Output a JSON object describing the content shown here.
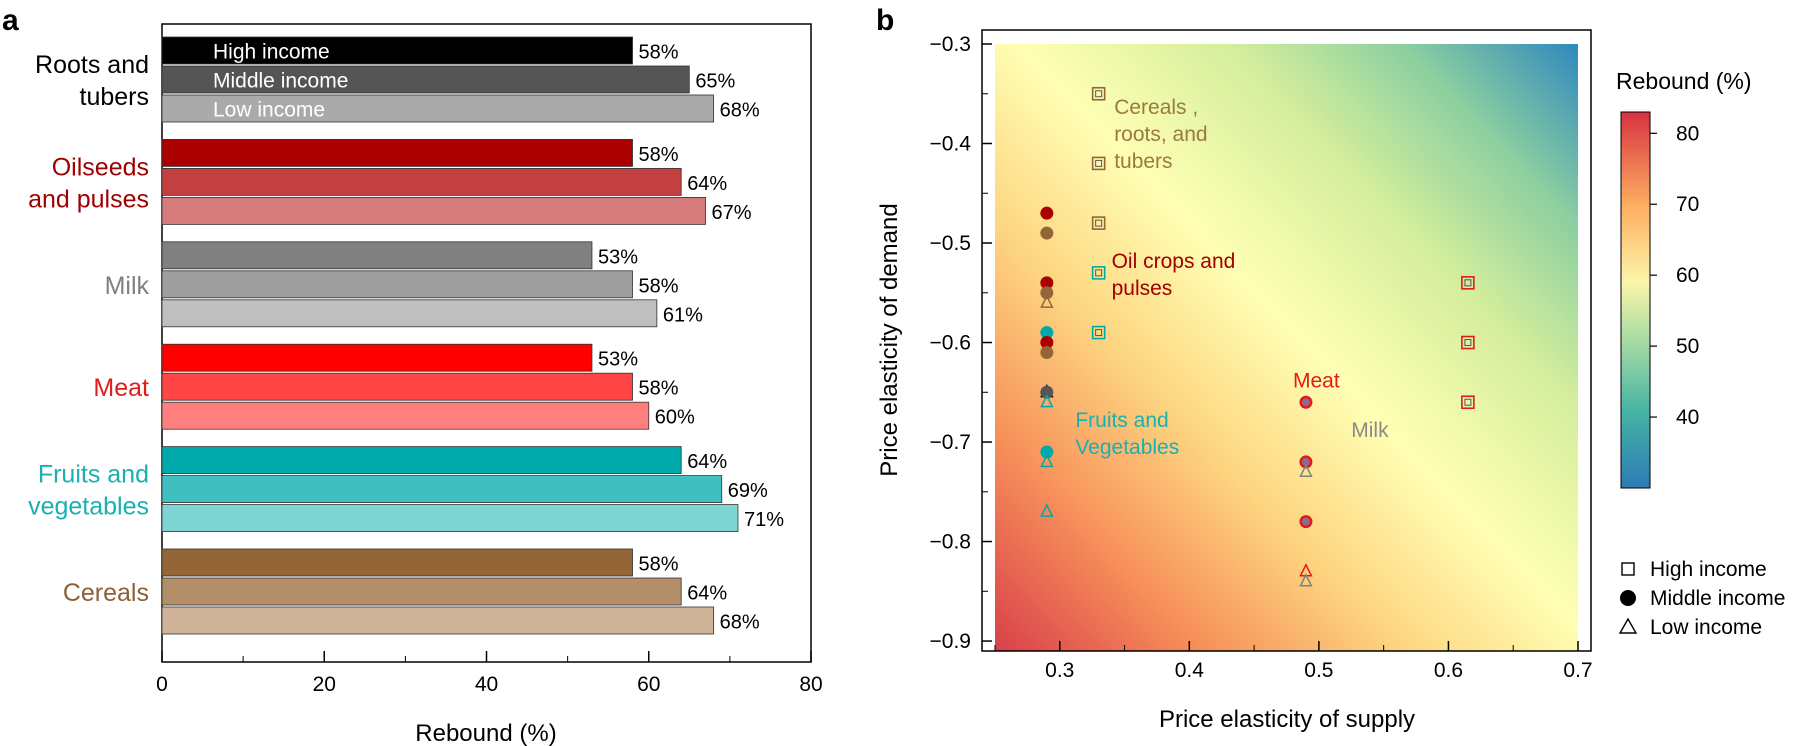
{
  "figure": {
    "panel_a_label": "a",
    "panel_b_label": "b"
  },
  "chart_data": [
    {
      "panel": "a",
      "type": "bar",
      "orientation": "horizontal",
      "xlabel": "Rebound (%)",
      "xlim": [
        0,
        80
      ],
      "xticks": [
        0,
        20,
        40,
        60,
        80
      ],
      "series_names": [
        "High income",
        "Middle income",
        "Low income"
      ],
      "groups": [
        {
          "label_lines": [
            "Roots and",
            "tubers"
          ],
          "label_color": "#000000",
          "colors": [
            "#000000",
            "#555555",
            "#aaaaaa"
          ],
          "values": [
            58,
            65,
            68
          ],
          "value_labels": [
            "58%",
            "65%",
            "68%"
          ]
        },
        {
          "label_lines": [
            "Oilseeds",
            "and pulses"
          ],
          "label_color": "#a00000",
          "colors": [
            "#aa0000",
            "#c34040",
            "#d67b7b"
          ],
          "values": [
            58,
            64,
            67
          ],
          "value_labels": [
            "58%",
            "64%",
            "67%"
          ]
        },
        {
          "label_lines": [
            "Milk"
          ],
          "label_color": "#808080",
          "colors": [
            "#808080",
            "#9e9e9e",
            "#bfbfbf"
          ],
          "values": [
            53,
            58,
            61
          ],
          "value_labels": [
            "53%",
            "58%",
            "61%"
          ]
        },
        {
          "label_lines": [
            "Meat"
          ],
          "label_color": "#e31a1c",
          "colors": [
            "#ff0000",
            "#ff4545",
            "#ff7f7f"
          ],
          "values": [
            53,
            58,
            60
          ],
          "value_labels": [
            "53%",
            "58%",
            "60%"
          ]
        },
        {
          "label_lines": [
            "Fruits and",
            "vegetables"
          ],
          "label_color": "#1ab0b0",
          "colors": [
            "#00a9a9",
            "#3fbfbf",
            "#7fd4d4"
          ],
          "values": [
            64,
            69,
            71
          ],
          "value_labels": [
            "64%",
            "69%",
            "71%"
          ]
        },
        {
          "label_lines": [
            "Cereals"
          ],
          "label_color": "#8b6034",
          "colors": [
            "#946536",
            "#b48e69",
            "#cfb499"
          ],
          "values": [
            58,
            64,
            68
          ],
          "value_labels": [
            "58%",
            "64%",
            "68%"
          ]
        }
      ]
    },
    {
      "panel": "b",
      "type": "scatter",
      "xlabel": "Price elasticity of supply",
      "ylabel": "Price elasticity of demand",
      "xlim": [
        0.25,
        0.7
      ],
      "ylim": [
        -0.91,
        -0.3
      ],
      "xticks": [
        0.3,
        0.4,
        0.5,
        0.6,
        0.7
      ],
      "yticks": [
        -0.3,
        -0.4,
        -0.5,
        -0.6,
        -0.7,
        -0.8,
        -0.9
      ],
      "background": "heatmap of rebound (%): about 83% at bottom-left, 30% at top-right",
      "colorbar": {
        "title": "Rebound (%)",
        "range": [
          30,
          83
        ],
        "ticks": [
          40,
          50,
          60,
          70,
          80
        ]
      },
      "legend": {
        "position": "bottom-right, outside plot",
        "entries": [
          {
            "marker": "square",
            "label": "High income"
          },
          {
            "marker": "circle",
            "label": "Middle income"
          },
          {
            "marker": "triangle",
            "label": "Low income"
          }
        ]
      },
      "annotations": [
        {
          "lines": [
            "Cereals ,",
            "roots, and",
            "tubers"
          ],
          "color": "#9b7a3d",
          "x": 0.342,
          "y": -0.35
        },
        {
          "lines": [
            "Oil crops and",
            "pulses"
          ],
          "color": "#a00000",
          "x": 0.34,
          "y": -0.505
        },
        {
          "lines": [
            "Meat"
          ],
          "color": "#e31a1c",
          "x": 0.48,
          "y": -0.625
        },
        {
          "lines": [
            "Milk"
          ],
          "color": "#8a8a8a",
          "x": 0.525,
          "y": -0.675
        },
        {
          "lines": [
            "Fruits and",
            "Vegetables"
          ],
          "color": "#1ab0b0",
          "x": 0.312,
          "y": -0.665
        }
      ],
      "points": [
        {
          "group": "Oilseeds and pulses",
          "income": "middle",
          "x": 0.29,
          "y": -0.47,
          "color": "#aa0000"
        },
        {
          "group": "Cereals",
          "income": "middle",
          "x": 0.29,
          "y": -0.49,
          "color": "#946536"
        },
        {
          "group": "Oilseeds and pulses",
          "income": "middle",
          "x": 0.29,
          "y": -0.54,
          "color": "#aa0000"
        },
        {
          "group": "Cereals",
          "income": "middle",
          "x": 0.29,
          "y": -0.55,
          "color": "#946536"
        },
        {
          "group": "Oilseeds and pulses",
          "income": "low",
          "x": 0.29,
          "y": -0.56,
          "color": "#946536"
        },
        {
          "group": "Fruits and vegetables",
          "income": "middle",
          "x": 0.29,
          "y": -0.59,
          "color": "#00a9a9"
        },
        {
          "group": "Oilseeds and pulses",
          "income": "middle",
          "x": 0.29,
          "y": -0.6,
          "color": "#aa0000"
        },
        {
          "group": "Roots and tubers",
          "income": "middle",
          "x": 0.29,
          "y": -0.61,
          "color": "#946536"
        },
        {
          "group": "Roots and tubers",
          "income": "low",
          "x": 0.29,
          "y": -0.65,
          "color": "#000000"
        },
        {
          "group": "Fruits and vegetables",
          "income": "middle",
          "x": 0.29,
          "y": -0.65,
          "color": "#555555"
        },
        {
          "group": "Fruits and vegetables",
          "income": "low",
          "x": 0.29,
          "y": -0.66,
          "color": "#00a9a9"
        },
        {
          "group": "Fruits and vegetables",
          "income": "middle",
          "x": 0.29,
          "y": -0.71,
          "color": "#00a9a9"
        },
        {
          "group": "Fruits and vegetables",
          "income": "low",
          "x": 0.29,
          "y": -0.72,
          "color": "#00a9a9"
        },
        {
          "group": "Fruits and vegetables",
          "income": "low",
          "x": 0.29,
          "y": -0.77,
          "color": "#00a9a9"
        },
        {
          "group": "Cereals",
          "income": "high",
          "x": 0.33,
          "y": -0.35,
          "color": "#946536"
        },
        {
          "group": "Cereals",
          "income": "high",
          "x": 0.33,
          "y": -0.42,
          "color": "#946536"
        },
        {
          "group": "Fruits and vegetables",
          "income": "high",
          "x": 0.33,
          "y": -0.48,
          "color": "#946536"
        },
        {
          "group": "Fruits and vegetables",
          "income": "high",
          "x": 0.33,
          "y": -0.53,
          "color": "#00a9a9"
        },
        {
          "group": "Fruits and vegetables",
          "income": "high",
          "x": 0.33,
          "y": -0.59,
          "color": "#00a9a9"
        },
        {
          "group": "Meat",
          "income": "middle",
          "x": 0.49,
          "y": -0.66,
          "color": "#e31a1c"
        },
        {
          "group": "Milk",
          "income": "middle",
          "x": 0.49,
          "y": -0.72,
          "color": "#e31a1c"
        },
        {
          "group": "Milk",
          "income": "low",
          "x": 0.49,
          "y": -0.73,
          "color": "#808080"
        },
        {
          "group": "Meat",
          "income": "middle",
          "x": 0.49,
          "y": -0.78,
          "color": "#e31a1c"
        },
        {
          "group": "Meat",
          "income": "low",
          "x": 0.49,
          "y": -0.83,
          "color": "#e31a1c"
        },
        {
          "group": "Milk",
          "income": "low",
          "x": 0.49,
          "y": -0.84,
          "color": "#808080"
        },
        {
          "group": "Meat",
          "income": "high",
          "x": 0.615,
          "y": -0.54,
          "color": "#e31a1c"
        },
        {
          "group": "Meat",
          "income": "high",
          "x": 0.615,
          "y": -0.6,
          "color": "#e31a1c"
        },
        {
          "group": "Meat",
          "income": "high",
          "x": 0.615,
          "y": -0.66,
          "color": "#e31a1c"
        }
      ]
    }
  ]
}
